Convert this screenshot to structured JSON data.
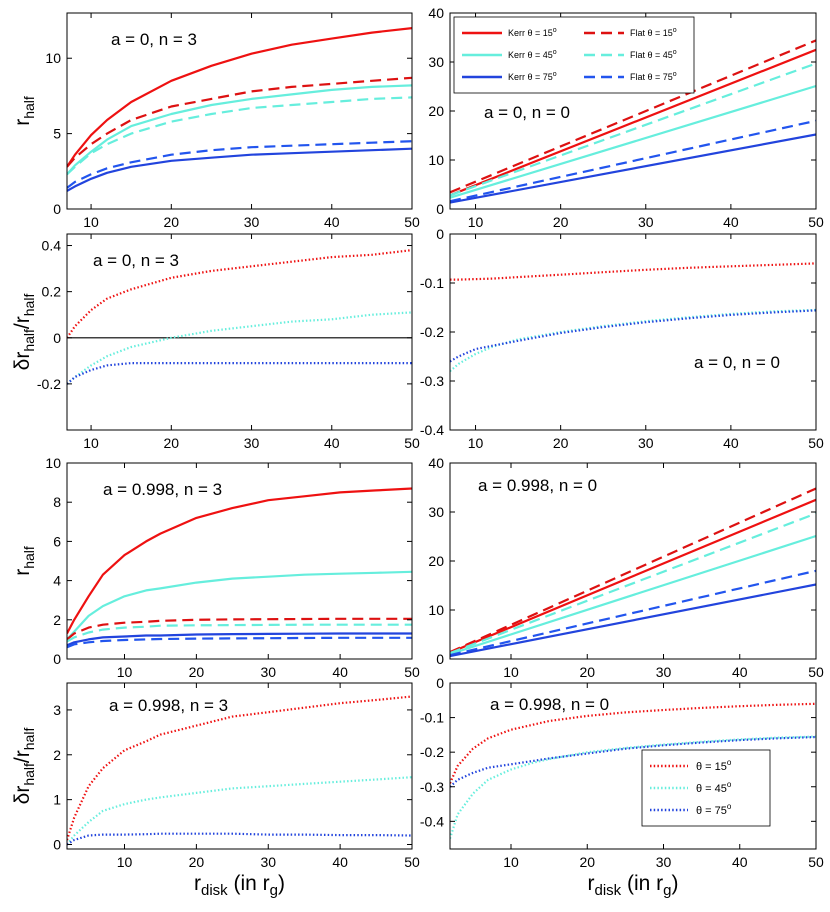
{
  "figure": {
    "xlabel": "r_disk (in r_g)"
  },
  "chart_data": [
    {
      "id": "p1",
      "type": "line",
      "annotation": "a = 0, n = 3",
      "ylabel": "r_half",
      "xlim": [
        7,
        50
      ],
      "ylim": [
        0,
        13
      ],
      "xticks": [
        10,
        20,
        30,
        40,
        50
      ],
      "yticks": [
        0,
        5,
        10
      ],
      "x": [
        7,
        8,
        10,
        12,
        15,
        20,
        25,
        30,
        35,
        40,
        45,
        50
      ],
      "series": [
        {
          "name": "Kerr θ = 15°",
          "color": "#ee1111",
          "dash": "solid",
          "values": [
            2.8,
            3.6,
            4.9,
            5.9,
            7.1,
            8.5,
            9.5,
            10.3,
            10.9,
            11.3,
            11.7,
            12.0
          ]
        },
        {
          "name": "Flat θ = 15°",
          "color": "#dd1111",
          "dash": "dashed",
          "values": [
            2.8,
            3.4,
            4.3,
            5.0,
            5.9,
            6.8,
            7.3,
            7.8,
            8.1,
            8.3,
            8.5,
            8.7
          ]
        },
        {
          "name": "Kerr θ = 45°",
          "color": "#66eedd",
          "dash": "solid",
          "values": [
            2.3,
            2.9,
            3.8,
            4.6,
            5.5,
            6.3,
            6.9,
            7.3,
            7.6,
            7.9,
            8.1,
            8.2
          ]
        },
        {
          "name": "Flat θ = 45°",
          "color": "#66eedd",
          "dash": "dashed",
          "values": [
            2.3,
            2.8,
            3.7,
            4.3,
            5.0,
            5.8,
            6.3,
            6.7,
            6.9,
            7.1,
            7.3,
            7.4
          ]
        },
        {
          "name": "Flat θ = 75°",
          "color": "#2255ee",
          "dash": "dashed",
          "values": [
            1.4,
            1.8,
            2.3,
            2.7,
            3.1,
            3.6,
            3.9,
            4.1,
            4.2,
            4.3,
            4.4,
            4.5
          ]
        },
        {
          "name": "Kerr θ = 75°",
          "color": "#2244dd",
          "dash": "solid",
          "values": [
            1.2,
            1.5,
            2.0,
            2.4,
            2.8,
            3.2,
            3.4,
            3.6,
            3.7,
            3.8,
            3.9,
            4.0
          ]
        }
      ]
    },
    {
      "id": "p2",
      "type": "line",
      "annotation": "a = 0, n = 0",
      "xlim": [
        7,
        50
      ],
      "ylim": [
        0,
        40
      ],
      "xticks": [
        10,
        20,
        30,
        40,
        50
      ],
      "yticks": [
        0,
        10,
        20,
        30,
        40
      ],
      "x": [
        7,
        50
      ],
      "legend": {
        "position": "top-left",
        "columns": 2,
        "entries": [
          "Kerr θ = 15°",
          "Flat θ = 15°",
          "Kerr θ = 45°",
          "Flat θ = 45°",
          "Kerr θ = 75°",
          "Flat θ = 75°"
        ]
      },
      "series": [
        {
          "name": "Flat θ = 15°",
          "color": "#dd1111",
          "dash": "dashed",
          "values": [
            3.4,
            34.4
          ]
        },
        {
          "name": "Kerr θ = 15°",
          "color": "#ee1111",
          "dash": "solid",
          "values": [
            2.8,
            32.5
          ]
        },
        {
          "name": "Flat θ = 45°",
          "color": "#66eedd",
          "dash": "dashed",
          "values": [
            2.8,
            29.7
          ]
        },
        {
          "name": "Kerr θ = 45°",
          "color": "#66eedd",
          "dash": "solid",
          "values": [
            2.3,
            25.1
          ]
        },
        {
          "name": "Flat θ = 75°",
          "color": "#2255ee",
          "dash": "dashed",
          "values": [
            1.6,
            18.0
          ]
        },
        {
          "name": "Kerr θ = 75°",
          "color": "#2244dd",
          "dash": "solid",
          "values": [
            1.3,
            15.2
          ]
        }
      ]
    },
    {
      "id": "p3",
      "type": "line",
      "annotation": "a = 0, n = 3",
      "ylabel": "δr_half/r_half",
      "xlim": [
        7,
        50
      ],
      "ylim": [
        -0.4,
        0.45
      ],
      "zero_line": true,
      "xticks": [
        10,
        20,
        30,
        40,
        50
      ],
      "yticks": [
        -0.2,
        0,
        0.2,
        0.4
      ],
      "x": [
        7,
        8,
        10,
        12,
        15,
        20,
        25,
        30,
        35,
        40,
        45,
        50
      ],
      "series": [
        {
          "name": "θ = 15°",
          "color": "#ee1111",
          "dash": "dotted",
          "values": [
            0.0,
            0.05,
            0.12,
            0.17,
            0.21,
            0.26,
            0.29,
            0.31,
            0.33,
            0.35,
            0.36,
            0.38
          ]
        },
        {
          "name": "θ = 45°",
          "color": "#66eedd",
          "dash": "dotted",
          "values": [
            -0.2,
            -0.17,
            -0.12,
            -0.08,
            -0.04,
            0.0,
            0.03,
            0.05,
            0.07,
            0.08,
            0.1,
            0.11
          ]
        },
        {
          "name": "θ = 75°",
          "color": "#2244dd",
          "dash": "dotted",
          "values": [
            -0.2,
            -0.17,
            -0.14,
            -0.12,
            -0.11,
            -0.11,
            -0.11,
            -0.11,
            -0.11,
            -0.11,
            -0.11,
            -0.11
          ]
        }
      ]
    },
    {
      "id": "p4",
      "type": "line",
      "annotation": "a = 0, n = 0",
      "xlim": [
        7,
        50
      ],
      "ylim": [
        -0.4,
        0
      ],
      "xticks": [
        10,
        20,
        30,
        40,
        50
      ],
      "yticks": [
        -0.4,
        -0.3,
        -0.2,
        -0.1,
        0
      ],
      "x": [
        7,
        8,
        10,
        12,
        15,
        20,
        25,
        30,
        35,
        40,
        45,
        50
      ],
      "series": [
        {
          "name": "θ = 15°",
          "color": "#ee1111",
          "dash": "dotted",
          "values": [
            -0.093,
            -0.093,
            -0.092,
            -0.091,
            -0.088,
            -0.083,
            -0.078,
            -0.073,
            -0.069,
            -0.066,
            -0.063,
            -0.06
          ]
        },
        {
          "name": "θ = 45°",
          "color": "#66eedd",
          "dash": "dotted",
          "values": [
            -0.28,
            -0.265,
            -0.245,
            -0.23,
            -0.215,
            -0.2,
            -0.188,
            -0.178,
            -0.17,
            -0.163,
            -0.158,
            -0.155
          ]
        },
        {
          "name": "θ = 75°",
          "color": "#2244dd",
          "dash": "dotted",
          "values": [
            -0.26,
            -0.25,
            -0.235,
            -0.228,
            -0.218,
            -0.202,
            -0.19,
            -0.18,
            -0.172,
            -0.165,
            -0.16,
            -0.156
          ]
        }
      ]
    },
    {
      "id": "p5",
      "type": "line",
      "annotation": "a = 0.998, n = 3",
      "ylabel": "r_half",
      "xlim": [
        2,
        50
      ],
      "ylim": [
        0,
        10
      ],
      "xticks": [
        10,
        20,
        30,
        40,
        50
      ],
      "yticks": [
        0,
        2,
        4,
        6,
        8,
        10
      ],
      "x": [
        2,
        3,
        5,
        7,
        10,
        13,
        15,
        20,
        25,
        30,
        35,
        40,
        45,
        50
      ],
      "series": [
        {
          "name": "Kerr θ = 15°",
          "color": "#ee1111",
          "dash": "solid",
          "values": [
            1.3,
            2.0,
            3.2,
            4.3,
            5.3,
            6.0,
            6.4,
            7.2,
            7.7,
            8.1,
            8.3,
            8.5,
            8.6,
            8.7
          ]
        },
        {
          "name": "Kerr θ = 45°",
          "color": "#66eedd",
          "dash": "solid",
          "values": [
            1.0,
            1.4,
            2.2,
            2.7,
            3.2,
            3.5,
            3.6,
            3.9,
            4.1,
            4.2,
            4.3,
            4.35,
            4.4,
            4.45
          ]
        },
        {
          "name": "Flat θ = 15°",
          "color": "#dd1111",
          "dash": "dashed",
          "values": [
            1.0,
            1.3,
            1.6,
            1.75,
            1.85,
            1.9,
            1.95,
            2.0,
            2.02,
            2.03,
            2.04,
            2.05,
            2.05,
            2.05
          ]
        },
        {
          "name": "Flat θ = 45°",
          "color": "#66eedd",
          "dash": "dashed",
          "values": [
            0.9,
            1.1,
            1.35,
            1.5,
            1.6,
            1.65,
            1.7,
            1.72,
            1.73,
            1.74,
            1.75,
            1.75,
            1.75,
            1.75
          ]
        },
        {
          "name": "Kerr θ = 75°",
          "color": "#2244dd",
          "dash": "solid",
          "values": [
            0.7,
            0.85,
            1.0,
            1.1,
            1.15,
            1.2,
            1.2,
            1.25,
            1.27,
            1.28,
            1.29,
            1.3,
            1.3,
            1.3
          ]
        },
        {
          "name": "Flat θ = 75°",
          "color": "#2255ee",
          "dash": "dashed",
          "values": [
            0.6,
            0.75,
            0.85,
            0.92,
            0.97,
            1.0,
            1.02,
            1.04,
            1.05,
            1.06,
            1.07,
            1.08,
            1.08,
            1.08
          ]
        }
      ]
    },
    {
      "id": "p6",
      "type": "line",
      "annotation": "a = 0.998, n = 0",
      "xlim": [
        2,
        50
      ],
      "ylim": [
        0,
        40
      ],
      "xticks": [
        10,
        20,
        30,
        40,
        50
      ],
      "yticks": [
        0,
        10,
        20,
        30,
        40
      ],
      "x": [
        2,
        50
      ],
      "series": [
        {
          "name": "Flat θ = 15°",
          "color": "#dd1111",
          "dash": "dashed",
          "values": [
            1.4,
            34.8
          ]
        },
        {
          "name": "Kerr θ = 15°",
          "color": "#ee1111",
          "dash": "solid",
          "values": [
            1.3,
            32.5
          ]
        },
        {
          "name": "Flat θ = 45°",
          "color": "#66eedd",
          "dash": "dashed",
          "values": [
            1.2,
            29.7
          ]
        },
        {
          "name": "Kerr θ = 45°",
          "color": "#66eedd",
          "dash": "solid",
          "values": [
            1.0,
            25.1
          ]
        },
        {
          "name": "Flat θ = 75°",
          "color": "#2255ee",
          "dash": "dashed",
          "values": [
            0.8,
            18.0
          ]
        },
        {
          "name": "Kerr θ = 75°",
          "color": "#2244dd",
          "dash": "solid",
          "values": [
            0.6,
            15.2
          ]
        }
      ]
    },
    {
      "id": "p7",
      "type": "line",
      "annotation": "a = 0.998, n = 3",
      "ylabel": "δr_half/r_half",
      "xlim": [
        2,
        50
      ],
      "ylim": [
        -0.1,
        3.6
      ],
      "xticks": [
        10,
        20,
        30,
        40,
        50
      ],
      "yticks": [
        0,
        1,
        2,
        3
      ],
      "x": [
        2,
        3,
        5,
        7,
        10,
        13,
        15,
        20,
        25,
        30,
        35,
        40,
        45,
        50
      ],
      "series": [
        {
          "name": "θ = 15°",
          "color": "#ee1111",
          "dash": "dotted",
          "values": [
            0.1,
            0.6,
            1.3,
            1.7,
            2.1,
            2.3,
            2.45,
            2.65,
            2.85,
            2.95,
            3.05,
            3.15,
            3.22,
            3.3
          ]
        },
        {
          "name": "θ = 45°",
          "color": "#66eedd",
          "dash": "dotted",
          "values": [
            0.0,
            0.2,
            0.5,
            0.75,
            0.9,
            1.0,
            1.05,
            1.15,
            1.25,
            1.3,
            1.35,
            1.4,
            1.45,
            1.5
          ]
        },
        {
          "name": "θ = 75°",
          "color": "#2244dd",
          "dash": "dotted",
          "values": [
            0.0,
            0.1,
            0.2,
            0.22,
            0.22,
            0.23,
            0.24,
            0.24,
            0.24,
            0.22,
            0.22,
            0.21,
            0.21,
            0.2
          ]
        }
      ]
    },
    {
      "id": "p8",
      "type": "line",
      "annotation": "a = 0.998, n = 0",
      "xlim": [
        2,
        50
      ],
      "ylim": [
        -0.48,
        0
      ],
      "xticks": [
        10,
        20,
        30,
        40,
        50
      ],
      "yticks": [
        -0.4,
        -0.3,
        -0.2,
        -0.1,
        0
      ],
      "x": [
        2,
        3,
        5,
        7,
        10,
        13,
        15,
        20,
        25,
        30,
        35,
        40,
        45,
        50
      ],
      "legend": {
        "position": "bottom-right",
        "columns": 1,
        "entries": [
          "θ = 15°",
          "θ = 45°",
          "θ = 75°"
        ]
      },
      "series": [
        {
          "name": "θ = 15°",
          "color": "#ee1111",
          "dash": "dotted",
          "values": [
            -0.29,
            -0.24,
            -0.19,
            -0.16,
            -0.135,
            -0.12,
            -0.11,
            -0.095,
            -0.085,
            -0.078,
            -0.072,
            -0.067,
            -0.063,
            -0.06
          ]
        },
        {
          "name": "θ = 45°",
          "color": "#66eedd",
          "dash": "dotted",
          "values": [
            -0.45,
            -0.38,
            -0.32,
            -0.28,
            -0.25,
            -0.23,
            -0.22,
            -0.2,
            -0.188,
            -0.178,
            -0.17,
            -0.163,
            -0.158,
            -0.155
          ]
        },
        {
          "name": "θ = 75°",
          "color": "#2244dd",
          "dash": "dotted",
          "values": [
            -0.3,
            -0.28,
            -0.26,
            -0.245,
            -0.235,
            -0.225,
            -0.218,
            -0.204,
            -0.19,
            -0.18,
            -0.172,
            -0.165,
            -0.16,
            -0.156
          ]
        }
      ]
    }
  ]
}
